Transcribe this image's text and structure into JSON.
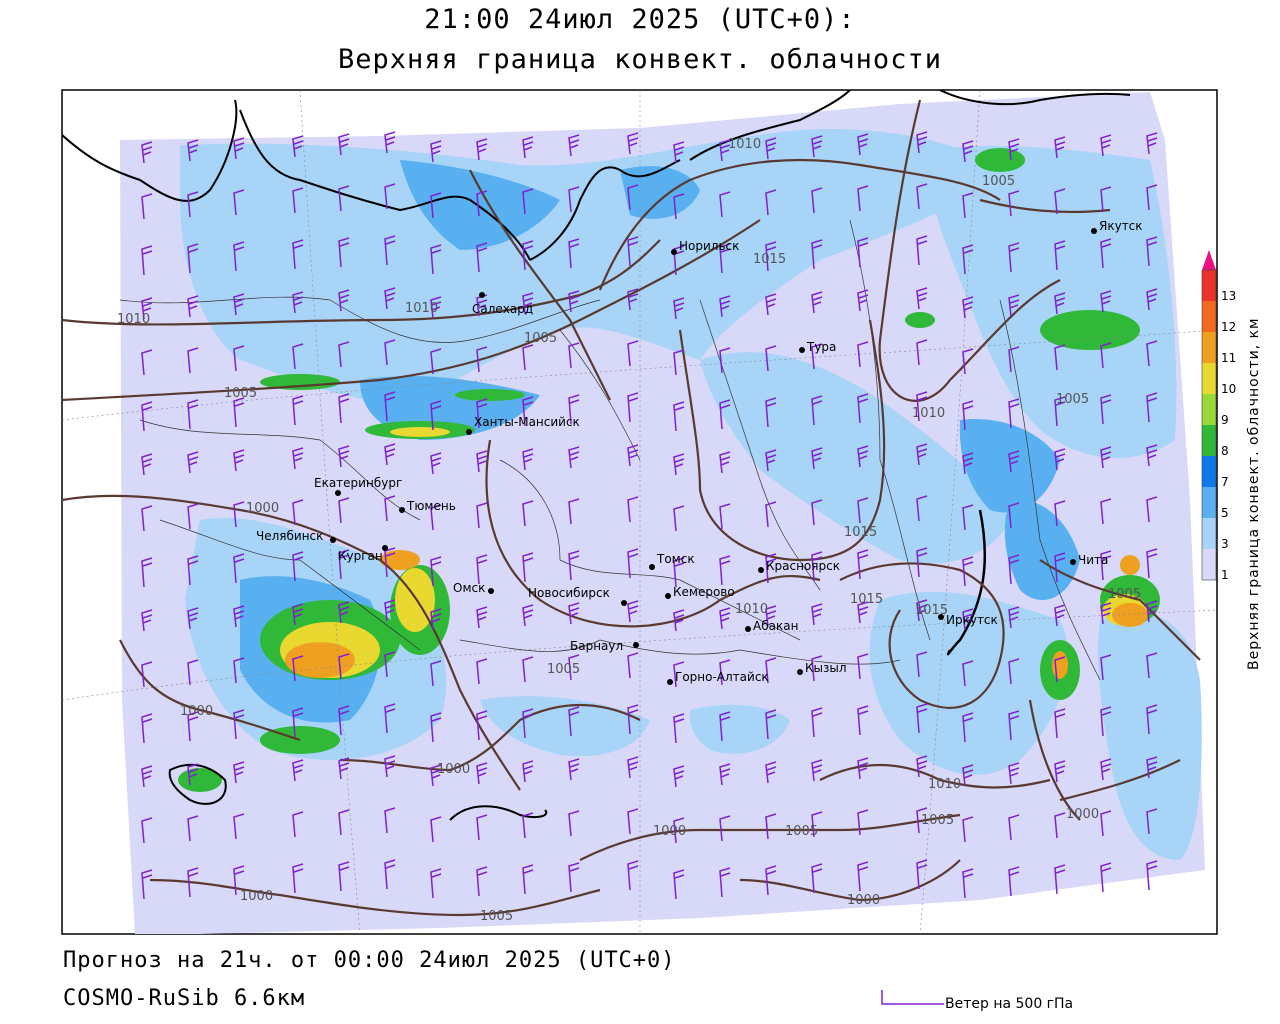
{
  "header": {
    "title": "21:00 24июл 2025 (UTC+0):",
    "subtitle": "Верхняя граница конвект. облачности"
  },
  "legend": {
    "title": "Верхняя граница конвект. облачности, км",
    "ticks": [
      "13",
      "12",
      "11",
      "10",
      "9",
      "8",
      "7",
      "5",
      "3",
      "1"
    ],
    "colors": [
      "#ee1080",
      "#e8322a",
      "#f06a20",
      "#f0a020",
      "#e8d830",
      "#98d838",
      "#30b838",
      "#1078e8",
      "#58b0f0",
      "#a8d4f8",
      "#d8d8f8"
    ]
  },
  "cities": [
    {
      "name": "Салехард"
    },
    {
      "name": "Норильск"
    },
    {
      "name": "Якутск"
    },
    {
      "name": "Тура"
    },
    {
      "name": "Ханты-Мансийск"
    },
    {
      "name": "Екатеринбург"
    },
    {
      "name": "Тюмень"
    },
    {
      "name": "Челябинск"
    },
    {
      "name": "Курган"
    },
    {
      "name": "Омск"
    },
    {
      "name": "Новосибирск"
    },
    {
      "name": "Томск"
    },
    {
      "name": "Кемерово"
    },
    {
      "name": "Красноярск"
    },
    {
      "name": "Барнаул"
    },
    {
      "name": "Абакан"
    },
    {
      "name": "Горно-Алтайск"
    },
    {
      "name": "Кызыл"
    },
    {
      "name": "Иркутск"
    },
    {
      "name": "Чита"
    }
  ],
  "isobar_labels": [
    "1010",
    "1005",
    "1015",
    "1010",
    "1005",
    "1010",
    "1005",
    "1005",
    "1010",
    "1000",
    "1015",
    "1015",
    "1015",
    "1010",
    "1005",
    "1005",
    "1000",
    "1000",
    "1000",
    "1005",
    "1010",
    "1005",
    "1000",
    "1000",
    "1000",
    "1005",
    "1000"
  ],
  "footer": {
    "forecast": "Прогноз на 21ч. от 00:00 24июл 2025 (UTC+0)",
    "model": "COSMO-RuSib 6.6км",
    "wind_label": "Ветер на 500 гПа"
  },
  "colors": {
    "background": "#d8d8f8",
    "cloud_light": "#a8d4f8",
    "cloud_mid": "#58b0f0",
    "isobar": "#5a3a30",
    "wind_barb": "#8020d0"
  }
}
